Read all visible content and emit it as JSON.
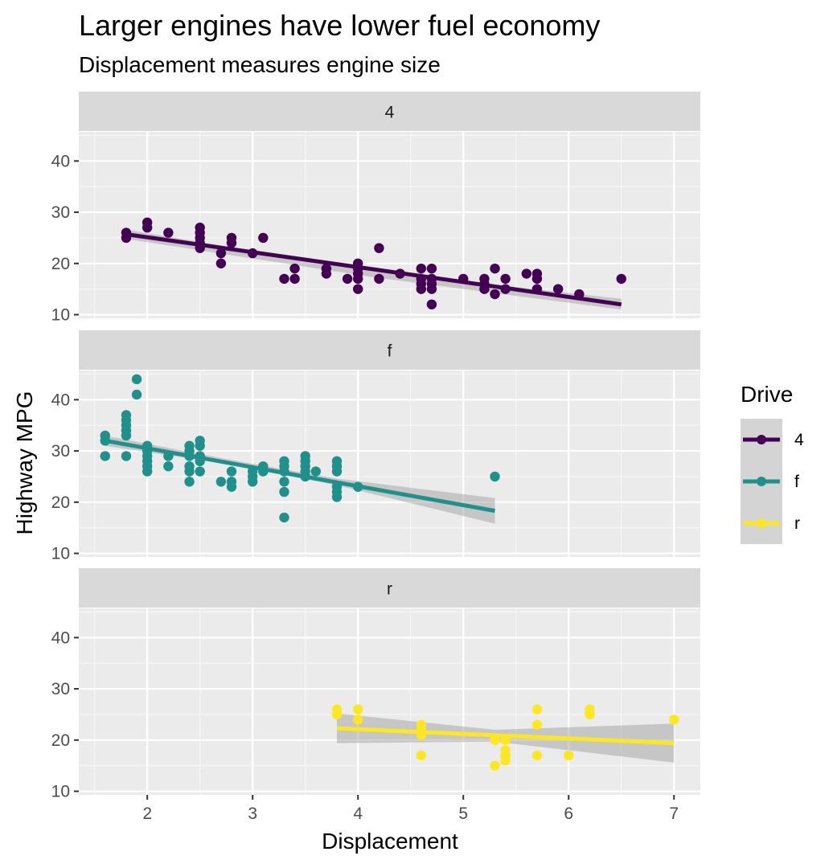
{
  "chart_data": {
    "type": "scatter",
    "title": "Larger engines have lower fuel economy",
    "subtitle": "Displacement measures engine size",
    "xlabel": "Displacement",
    "ylabel": "Highway MPG",
    "xlim": [
      1.35,
      7.25
    ],
    "ylim": [
      9.3,
      45.7
    ],
    "x_ticks": [
      "2",
      "3",
      "4",
      "5",
      "6",
      "7"
    ],
    "y_ticks": [
      "10",
      "20",
      "30",
      "40"
    ],
    "grid": true,
    "legend_title": "Drive",
    "legend_position": "right",
    "overlay": "linear trend line with grey confidence band per panel",
    "panels": [
      {
        "name": "4",
        "color": "#440154",
        "points": [
          [
            1.8,
            26
          ],
          [
            1.8,
            25
          ],
          [
            2,
            28
          ],
          [
            2,
            27
          ],
          [
            2.2,
            26
          ],
          [
            2.5,
            27
          ],
          [
            2.5,
            26
          ],
          [
            2.5,
            25
          ],
          [
            2.5,
            24
          ],
          [
            2.5,
            23
          ],
          [
            2.7,
            22
          ],
          [
            2.7,
            20
          ],
          [
            2.8,
            25
          ],
          [
            2.8,
            24
          ],
          [
            3,
            22
          ],
          [
            3.1,
            25
          ],
          [
            3.3,
            17
          ],
          [
            3.4,
            19
          ],
          [
            3.4,
            17
          ],
          [
            3.7,
            19
          ],
          [
            3.7,
            18
          ],
          [
            3.9,
            17
          ],
          [
            4,
            20
          ],
          [
            4,
            19
          ],
          [
            4,
            18
          ],
          [
            4,
            17
          ],
          [
            4,
            15
          ],
          [
            4.2,
            23
          ],
          [
            4.2,
            17
          ],
          [
            4.4,
            18
          ],
          [
            4.6,
            19
          ],
          [
            4.6,
            17
          ],
          [
            4.6,
            16
          ],
          [
            4.6,
            15
          ],
          [
            4.7,
            19
          ],
          [
            4.7,
            17
          ],
          [
            4.7,
            16
          ],
          [
            4.7,
            15
          ],
          [
            4.7,
            12
          ],
          [
            5,
            17
          ],
          [
            5.2,
            17
          ],
          [
            5.2,
            16
          ],
          [
            5.2,
            15
          ],
          [
            5.3,
            19
          ],
          [
            5.3,
            14
          ],
          [
            5.4,
            17
          ],
          [
            5.4,
            15
          ],
          [
            5.6,
            18
          ],
          [
            5.7,
            18
          ],
          [
            5.7,
            17
          ],
          [
            5.7,
            15
          ],
          [
            5.9,
            15
          ],
          [
            6.1,
            14
          ],
          [
            6.5,
            17
          ]
        ],
        "fit": {
          "x": [
            1.8,
            6.5
          ],
          "y": [
            25.7,
            12.0
          ]
        },
        "band": {
          "x": [
            1.8,
            4.15,
            6.5
          ],
          "lower": [
            24.8,
            17.3,
            11.0
          ],
          "upper": [
            26.6,
            18.5,
            13.1
          ]
        }
      },
      {
        "name": "f",
        "color": "#21908C",
        "points": [
          [
            1.6,
            33
          ],
          [
            1.6,
            32
          ],
          [
            1.6,
            29
          ],
          [
            1.8,
            37
          ],
          [
            1.8,
            36
          ],
          [
            1.8,
            35
          ],
          [
            1.8,
            34
          ],
          [
            1.8,
            33
          ],
          [
            1.8,
            29
          ],
          [
            1.9,
            44
          ],
          [
            1.9,
            41
          ],
          [
            2,
            31
          ],
          [
            2,
            30
          ],
          [
            2,
            29
          ],
          [
            2,
            28
          ],
          [
            2,
            27
          ],
          [
            2,
            26
          ],
          [
            2.2,
            29
          ],
          [
            2.2,
            27
          ],
          [
            2.4,
            31
          ],
          [
            2.4,
            30
          ],
          [
            2.4,
            29
          ],
          [
            2.4,
            27
          ],
          [
            2.4,
            26
          ],
          [
            2.4,
            24
          ],
          [
            2.5,
            32
          ],
          [
            2.5,
            31
          ],
          [
            2.5,
            29
          ],
          [
            2.5,
            28
          ],
          [
            2.5,
            26
          ],
          [
            2.7,
            24
          ],
          [
            2.8,
            26
          ],
          [
            2.8,
            24
          ],
          [
            2.8,
            23
          ],
          [
            3,
            26
          ],
          [
            3,
            25
          ],
          [
            3,
            24
          ],
          [
            3.1,
            27
          ],
          [
            3.1,
            26
          ],
          [
            3.3,
            28
          ],
          [
            3.3,
            27
          ],
          [
            3.3,
            26
          ],
          [
            3.3,
            24
          ],
          [
            3.3,
            22
          ],
          [
            3.3,
            17
          ],
          [
            3.5,
            29
          ],
          [
            3.5,
            28
          ],
          [
            3.5,
            27
          ],
          [
            3.5,
            26
          ],
          [
            3.5,
            25
          ],
          [
            3.6,
            26
          ],
          [
            3.8,
            28
          ],
          [
            3.8,
            27
          ],
          [
            3.8,
            26
          ],
          [
            3.8,
            23
          ],
          [
            3.8,
            22
          ],
          [
            3.8,
            21
          ],
          [
            4,
            23
          ],
          [
            5.3,
            25
          ]
        ],
        "fit": {
          "x": [
            1.6,
            5.3
          ],
          "y": [
            32.0,
            18.3
          ]
        },
        "band": {
          "x": [
            1.6,
            2.7,
            3.8,
            5.3
          ],
          "lower": [
            31.0,
            27.6,
            23.3,
            15.8
          ],
          "upper": [
            33.0,
            28.6,
            24.6,
            20.8
          ]
        }
      },
      {
        "name": "r",
        "color": "#FDE725",
        "points": [
          [
            3.8,
            26
          ],
          [
            3.8,
            25
          ],
          [
            4,
            26
          ],
          [
            4,
            24
          ],
          [
            4.6,
            23
          ],
          [
            4.6,
            22
          ],
          [
            4.6,
            21
          ],
          [
            4.6,
            17
          ],
          [
            5.3,
            20
          ],
          [
            5.3,
            15
          ],
          [
            5.4,
            20
          ],
          [
            5.4,
            18
          ],
          [
            5.4,
            17
          ],
          [
            5.4,
            16
          ],
          [
            5.7,
            26
          ],
          [
            5.7,
            23
          ],
          [
            5.7,
            17
          ],
          [
            6,
            17
          ],
          [
            6.2,
            26
          ],
          [
            6.2,
            25
          ],
          [
            7,
            24
          ]
        ],
        "fit": {
          "x": [
            3.8,
            7.0
          ],
          "y": [
            22.3,
            19.4
          ]
        },
        "band": {
          "x": [
            3.8,
            5.3,
            7.0
          ],
          "lower": [
            19.4,
            19.7,
            15.6
          ],
          "upper": [
            25.2,
            22.0,
            23.2
          ]
        }
      }
    ]
  }
}
